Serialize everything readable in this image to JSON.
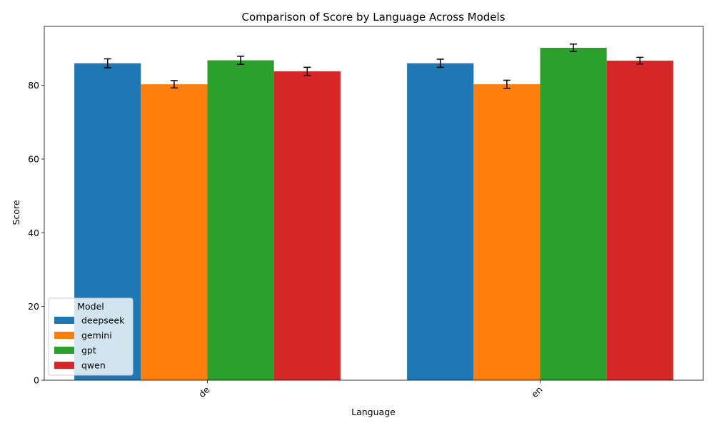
{
  "chart_data": {
    "type": "bar",
    "title": "Comparison of Score by Language Across Models",
    "xlabel": "Language",
    "ylabel": "Score",
    "categories": [
      "de",
      "en"
    ],
    "ylim": [
      0,
      96
    ],
    "yticks": [
      0,
      20,
      40,
      60,
      80
    ],
    "grid": false,
    "error_bars": true,
    "legend": {
      "title": "Model",
      "placement": "lower-left"
    },
    "series": [
      {
        "name": "deepseek",
        "color": "#1f77b4",
        "values": [
          86.0,
          86.0
        ],
        "errors": [
          1.2,
          1.1
        ]
      },
      {
        "name": "gemini",
        "color": "#ff7f0e",
        "values": [
          80.3,
          80.3
        ],
        "errors": [
          1.0,
          1.1
        ]
      },
      {
        "name": "gpt",
        "color": "#2ca02c",
        "values": [
          86.8,
          90.2
        ],
        "errors": [
          1.1,
          1.0
        ]
      },
      {
        "name": "qwen",
        "color": "#d62728",
        "values": [
          83.8,
          86.7
        ],
        "errors": [
          1.1,
          0.9
        ]
      }
    ]
  }
}
